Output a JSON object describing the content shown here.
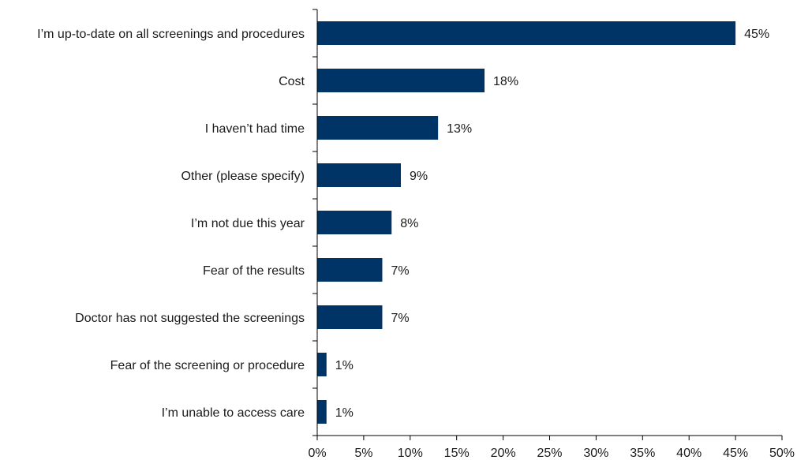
{
  "chart_data": {
    "type": "bar",
    "orientation": "horizontal",
    "title": "",
    "xlabel": "",
    "ylabel": "",
    "categories": [
      "I’m up-to-date on all screenings and procedures",
      "Cost",
      "I haven’t had time",
      "Other (please specify)",
      "I’m not due this year",
      "Fear of the results",
      "Doctor has not suggested the screenings",
      "Fear of the screening or procedure",
      "I’m unable to access care"
    ],
    "values": [
      45,
      18,
      13,
      9,
      8,
      7,
      7,
      1,
      1
    ],
    "data_labels": [
      "45%",
      "18%",
      "13%",
      "9%",
      "8%",
      "7%",
      "7%",
      "1%",
      "1%"
    ],
    "xlim": [
      0,
      50
    ],
    "x_ticks": [
      0,
      5,
      10,
      15,
      20,
      25,
      30,
      35,
      40,
      45,
      50
    ],
    "x_tick_labels": [
      "0%",
      "5%",
      "10%",
      "15%",
      "20%",
      "25%",
      "30%",
      "35%",
      "40%",
      "45%",
      "50%"
    ],
    "grid": false,
    "legend": "none",
    "bar_color": "#003366"
  }
}
